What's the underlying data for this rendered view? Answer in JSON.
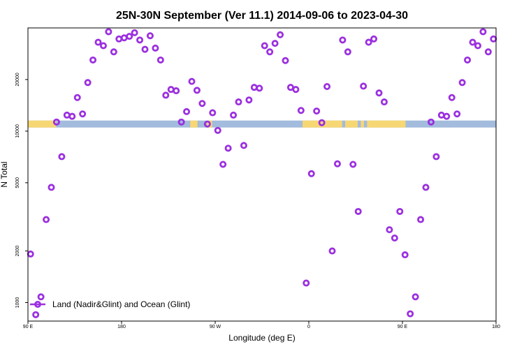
{
  "chart_data": {
    "type": "scatter",
    "title": "25N-30N September (Ver 11.1)   2014-09-06 to 2023-04-30",
    "xlabel": "Longitude (deg E)",
    "ylabel": "N Total",
    "x_ticks": [
      {
        "value": 90,
        "label": "90 E"
      },
      {
        "value": 180,
        "label": "180"
      },
      {
        "value": 270,
        "label": "90 W"
      },
      {
        "value": 360,
        "label": "0"
      },
      {
        "value": 450,
        "label": "90 E"
      },
      {
        "value": 540,
        "label": "180"
      }
    ],
    "y_ticks": [
      {
        "value": 1000,
        "label": "1000"
      },
      {
        "value": 2000,
        "label": "2000"
      },
      {
        "value": 5000,
        "label": "5000"
      },
      {
        "value": 10000,
        "label": "10000"
      },
      {
        "value": 20000,
        "label": "20000"
      }
    ],
    "xlim": [
      90,
      540
    ],
    "ylim": [
      780,
      40000
    ],
    "y_scale": "log",
    "legend": {
      "label": "Land (Nadir&Glint) and Ocean (Glint)",
      "position": "bottom-left"
    },
    "surface_band": {
      "value": 11000,
      "land_color": "#f7d774",
      "ocean_color": "#a3bbdc"
    },
    "land_segments": [
      [
        90,
        117
      ],
      [
        246,
        253
      ],
      [
        262,
        267
      ],
      [
        354,
        392
      ],
      [
        395,
        407
      ],
      [
        410,
        413
      ],
      [
        416,
        453
      ]
    ],
    "series": [
      {
        "marker_color": "#9b30e0",
        "points": [
          [
            92.5,
            1920
          ],
          [
            97.5,
            850
          ],
          [
            102.5,
            1080
          ],
          [
            107.5,
            3050
          ],
          [
            112.5,
            4700
          ],
          [
            117.5,
            11300
          ],
          [
            122.5,
            7100
          ],
          [
            127.5,
            12400
          ],
          [
            132.5,
            12200
          ],
          [
            137.5,
            15700
          ],
          [
            142.5,
            12600
          ],
          [
            147.5,
            19200
          ],
          [
            152.5,
            26000
          ],
          [
            157.5,
            33000
          ],
          [
            162.5,
            31500
          ],
          [
            167.5,
            38000
          ],
          [
            172.5,
            29000
          ],
          [
            177.5,
            34500
          ],
          [
            182.5,
            35000
          ],
          [
            187.5,
            35700
          ],
          [
            192.5,
            37500
          ],
          [
            197.5,
            34000
          ],
          [
            202.5,
            30000
          ],
          [
            207.5,
            36000
          ],
          [
            212.5,
            30500
          ],
          [
            217.5,
            26000
          ],
          [
            222.5,
            16200
          ],
          [
            227.5,
            17500
          ],
          [
            232.5,
            17200
          ],
          [
            237.5,
            11300
          ],
          [
            242.5,
            13000
          ],
          [
            247.5,
            19500
          ],
          [
            252.5,
            17300
          ],
          [
            257.5,
            14500
          ],
          [
            262.5,
            11000
          ],
          [
            267.5,
            12800
          ],
          [
            272.5,
            10100
          ],
          [
            277.5,
            6400
          ],
          [
            282.5,
            7950
          ],
          [
            287.5,
            12400
          ],
          [
            292.5,
            14800
          ],
          [
            297.5,
            8250
          ],
          [
            302.5,
            15200
          ],
          [
            307.5,
            18000
          ],
          [
            312.5,
            17800
          ],
          [
            317.5,
            31500
          ],
          [
            322.5,
            29000
          ],
          [
            327.5,
            32500
          ],
          [
            332.5,
            36500
          ],
          [
            337.5,
            25800
          ],
          [
            342.5,
            18000
          ],
          [
            347.5,
            17500
          ],
          [
            352.5,
            13200
          ],
          [
            357.5,
            1300
          ],
          [
            362.5,
            5650
          ],
          [
            367.5,
            13100
          ],
          [
            372.5,
            11200
          ],
          [
            377.5,
            18200
          ],
          [
            382.5,
            2000
          ],
          [
            387.5,
            6450
          ],
          [
            392.5,
            34000
          ],
          [
            397.5,
            29000
          ],
          [
            402.5,
            6400
          ],
          [
            407.5,
            3400
          ],
          [
            412.5,
            18300
          ],
          [
            417.5,
            33000
          ],
          [
            422.5,
            34500
          ],
          [
            427.5,
            16700
          ],
          [
            432.5,
            14800
          ],
          [
            437.5,
            2660
          ],
          [
            442.5,
            2380
          ],
          [
            447.5,
            3400
          ],
          [
            452.5,
            1900
          ],
          [
            457.5,
            860
          ],
          [
            462.5,
            1080
          ],
          [
            467.5,
            3050
          ],
          [
            472.5,
            4700
          ],
          [
            477.5,
            11300
          ],
          [
            482.5,
            7100
          ],
          [
            487.5,
            12400
          ],
          [
            492.5,
            12200
          ],
          [
            497.5,
            15700
          ],
          [
            502.5,
            12600
          ],
          [
            507.5,
            19200
          ],
          [
            512.5,
            26000
          ],
          [
            517.5,
            33000
          ],
          [
            522.5,
            31500
          ],
          [
            527.5,
            38000
          ],
          [
            532.5,
            29000
          ],
          [
            537.5,
            34500
          ]
        ]
      }
    ]
  }
}
